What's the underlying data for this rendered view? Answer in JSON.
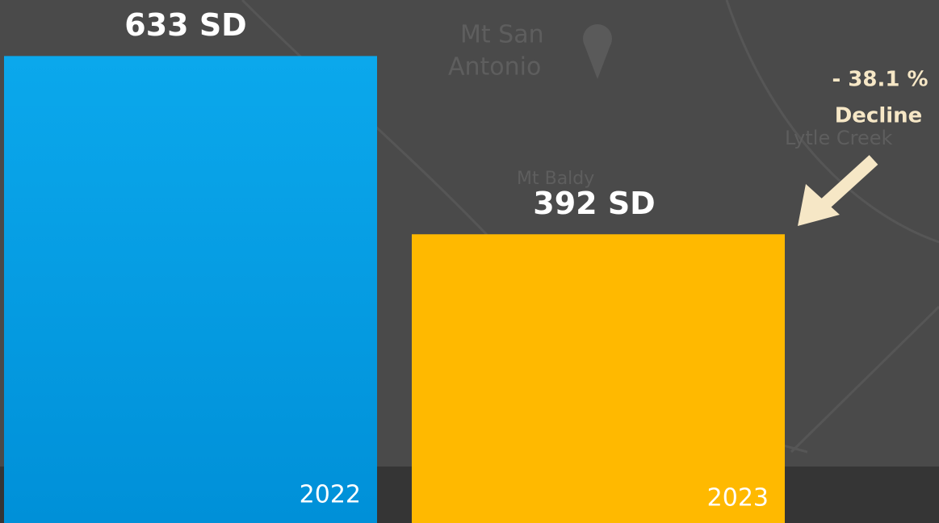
{
  "chart_data": {
    "type": "bar",
    "categories": [
      "2022",
      "2023"
    ],
    "values": [
      633,
      392
    ],
    "value_labels": [
      "633 SD",
      "392 SD"
    ],
    "colors": [
      "#0aa0e6",
      "#ffb900"
    ],
    "ylim": [
      0,
      700
    ],
    "annotation": [
      "- 38.1 %",
      "Decline"
    ],
    "map_labels": [
      "Mt San",
      "Antonio",
      "Mt Baldy",
      "Lytle Creek"
    ]
  }
}
